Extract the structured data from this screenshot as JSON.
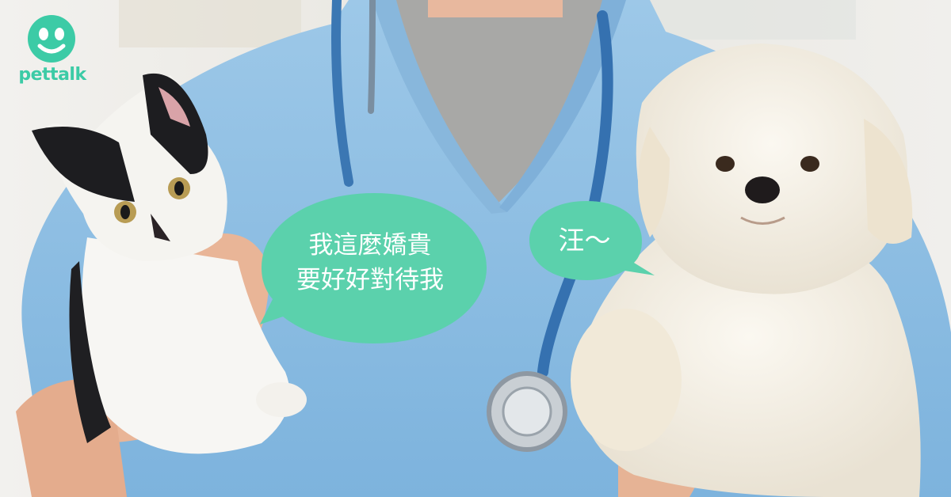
{
  "brand": {
    "name": "pettalk",
    "color": "#3ccba6"
  },
  "speech": {
    "cat_lines": [
      "我這麼嬌貴",
      "要好好對待我"
    ],
    "dog_line": "汪～",
    "bubble_color": "#5bd1ac"
  },
  "scene": {
    "subjects": [
      "veterinarian-scrubs",
      "stethoscope",
      "cat",
      "dog"
    ]
  }
}
